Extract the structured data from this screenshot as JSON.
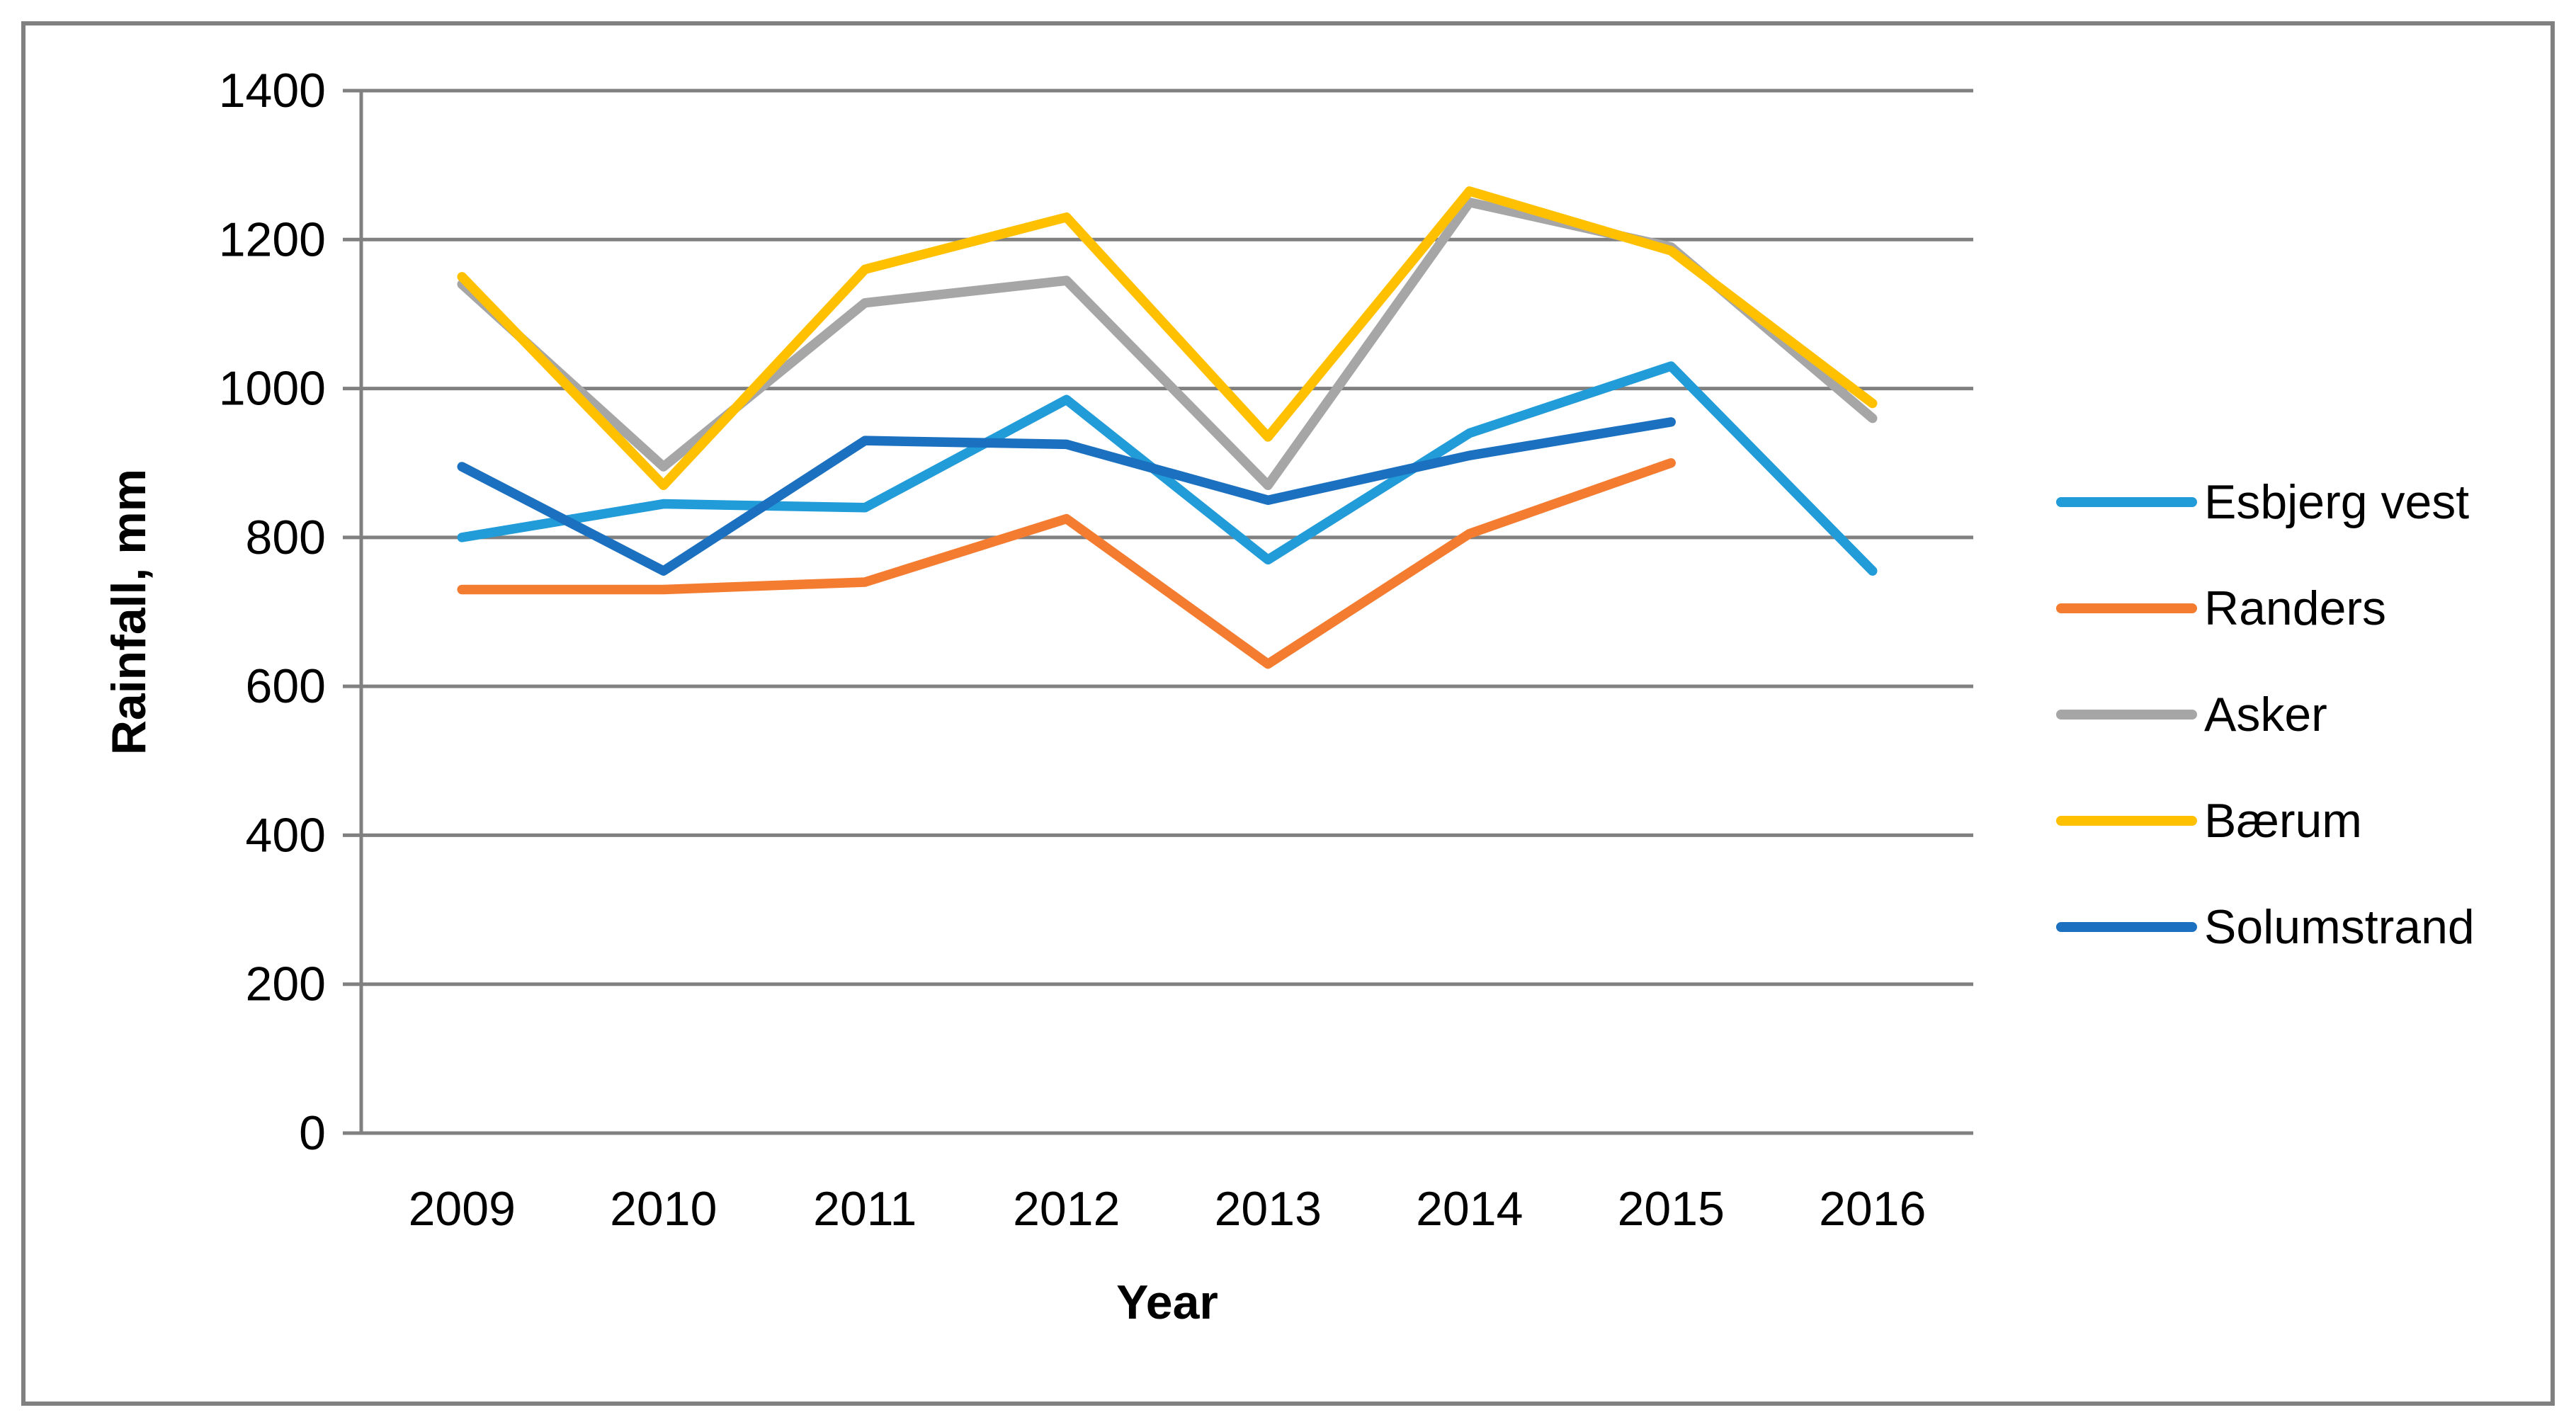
{
  "chart_data": {
    "type": "line",
    "title": "",
    "xlabel": "Year",
    "ylabel": "Rainfall, mm",
    "categories": [
      "2009",
      "2010",
      "2011",
      "2012",
      "2013",
      "2014",
      "2015",
      "2016"
    ],
    "ylim": [
      0,
      1400
    ],
    "y_ticks": [
      0,
      200,
      400,
      600,
      800,
      1000,
      1200,
      1400
    ],
    "grid": true,
    "legend_position": "right",
    "axis_color": "#808080",
    "text_color": "#000000",
    "series": [
      {
        "name": "Esbjerg vest",
        "color": "#219CD8",
        "values": [
          800,
          845,
          840,
          985,
          770,
          940,
          1030,
          755
        ]
      },
      {
        "name": "Randers",
        "color": "#F47C30",
        "values": [
          730,
          730,
          740,
          825,
          630,
          805,
          900,
          null
        ]
      },
      {
        "name": "Asker",
        "color": "#A6A6A6",
        "values": [
          1140,
          895,
          1115,
          1145,
          870,
          1250,
          1190,
          960
        ]
      },
      {
        "name": "Bærum",
        "color": "#FFC000",
        "values": [
          1150,
          870,
          1160,
          1230,
          935,
          1265,
          1185,
          980
        ]
      },
      {
        "name": "Solumstrand",
        "color": "#1C70C0",
        "values": [
          895,
          755,
          930,
          925,
          850,
          910,
          955,
          null
        ]
      }
    ]
  }
}
